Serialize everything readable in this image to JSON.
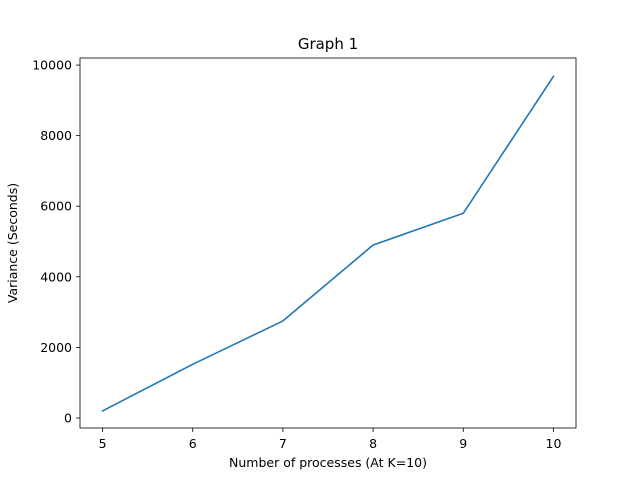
{
  "chart_data": {
    "type": "line",
    "title": "Graph 1",
    "xlabel": "Number of processes (At K=10)",
    "ylabel": "Variance (Seconds)",
    "x": [
      5,
      6,
      7,
      8,
      9,
      10
    ],
    "series": [
      {
        "values": [
          200,
          1520,
          2750,
          4900,
          5800,
          9680
        ],
        "color": "#1f77b4"
      }
    ],
    "xlim": [
      4.75,
      10.25
    ],
    "ylim": [
      -284,
      10200
    ],
    "xticks": [
      5,
      6,
      7,
      8,
      9,
      10
    ],
    "xtick_labels": [
      "5",
      "6",
      "7",
      "8",
      "9",
      "10"
    ],
    "yticks": [
      0,
      2000,
      4000,
      6000,
      8000,
      10000
    ],
    "ytick_labels": [
      "0",
      "2000",
      "4000",
      "6000",
      "8000",
      "10000"
    ],
    "grid": false,
    "legend": "none"
  }
}
